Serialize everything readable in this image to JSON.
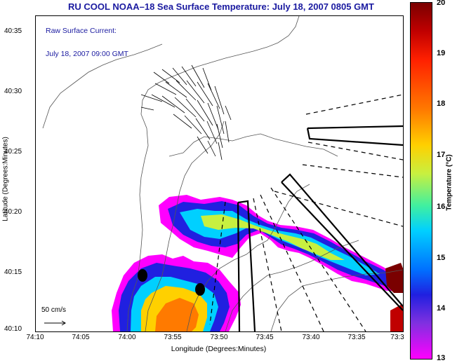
{
  "title": "RU COOL  NOAA–18  Sea Surface Temperature:  July 18, 2007 0805 GMT",
  "overlay": {
    "raw_current_label": "Raw Surface Current:",
    "raw_current_time": "July 18, 2007 09:00 GMT",
    "scale_label": "50 cm/s"
  },
  "axes": {
    "ylabel": "Latitude (Degrees:Minutes)",
    "xlabel": "Longitude (Degrees:Minutes)",
    "yticks": [
      "40:35",
      "40:30",
      "40:25",
      "40:20",
      "40:15",
      "40:10"
    ],
    "xticks": [
      "74:10",
      "74:05",
      "74:00",
      "73:55",
      "73:50",
      "73:45",
      "73:40",
      "73:35",
      "73:3"
    ]
  },
  "colorbar": {
    "label": "Temperature (°C)",
    "ticks": [
      "20",
      "19",
      "18",
      "17",
      "16",
      "15",
      "14",
      "13"
    ],
    "range": [
      13,
      20
    ]
  },
  "colors": {
    "title": "#1a1aa0",
    "warm": "#ff7a00",
    "cool": "#2020e0",
    "frontal_edge": "#ff00ff"
  }
}
